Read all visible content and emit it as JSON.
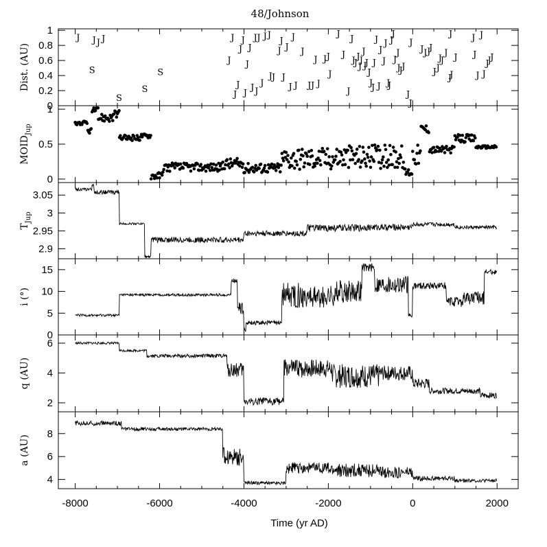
{
  "chart_data": {
    "type": "line",
    "title": "48/Johnson",
    "xlabel": "Time (yr AD)",
    "xlim": [
      -8400,
      2500
    ],
    "xticks": [
      -8000,
      -6000,
      -4000,
      -2000,
      0,
      2000
    ],
    "x_tick_labels": [
      "-8000",
      "-6000",
      "-4000",
      "-2000",
      "0",
      "2000"
    ],
    "panels": [
      {
        "id": "dist",
        "ylabel": "Dist. (AU)",
        "type": "scatter",
        "ylim": [
          0,
          1.02
        ],
        "yticks": [
          0,
          0.2,
          0.4,
          0.6,
          0.8,
          1
        ],
        "y_tick_labels": [
          "0",
          "0.2",
          "0.4",
          "0.6",
          "0.8",
          "1"
        ],
        "markers": [
          {
            "t": "J",
            "x": -7930,
            "y": 0.9
          },
          {
            "t": "J",
            "x": -7550,
            "y": 0.87
          },
          {
            "t": "J",
            "x": -7450,
            "y": 0.84
          },
          {
            "t": "J",
            "x": -7330,
            "y": 0.89
          },
          {
            "t": "S",
            "x": -7600,
            "y": 0.47
          },
          {
            "t": "S",
            "x": -6960,
            "y": 0.1
          },
          {
            "t": "S",
            "x": -6350,
            "y": 0.22
          },
          {
            "t": "S",
            "x": -5980,
            "y": 0.44
          },
          {
            "t": "J",
            "x": -4350,
            "y": 0.6
          },
          {
            "t": "J",
            "x": -4270,
            "y": 0.9
          },
          {
            "t": "J",
            "x": -4210,
            "y": 0.15
          },
          {
            "t": "J",
            "x": -4140,
            "y": 0.28
          },
          {
            "t": "J",
            "x": -4080,
            "y": 0.75
          },
          {
            "t": "J",
            "x": -4020,
            "y": 0.87
          },
          {
            "t": "J",
            "x": -3970,
            "y": 0.17
          },
          {
            "t": "J",
            "x": -3920,
            "y": 0.55
          },
          {
            "t": "J",
            "x": -3860,
            "y": 0.77
          },
          {
            "t": "J",
            "x": -3800,
            "y": 0.24
          },
          {
            "t": "J",
            "x": -3730,
            "y": 0.9
          },
          {
            "t": "J",
            "x": -3700,
            "y": 0.19
          },
          {
            "t": "J",
            "x": -3650,
            "y": 0.9
          },
          {
            "t": "J",
            "x": -3570,
            "y": 0.3
          },
          {
            "t": "J",
            "x": -3500,
            "y": 0.92
          },
          {
            "t": "J",
            "x": -3400,
            "y": 0.94
          },
          {
            "t": "J",
            "x": -3370,
            "y": 0.39
          },
          {
            "t": "J",
            "x": -3300,
            "y": 0.38
          },
          {
            "t": "J",
            "x": -3160,
            "y": 0.73
          },
          {
            "t": "J",
            "x": -3110,
            "y": 0.86
          },
          {
            "t": "J",
            "x": -3060,
            "y": 0.38
          },
          {
            "t": "J",
            "x": -2980,
            "y": 0.78
          },
          {
            "t": "J",
            "x": -2900,
            "y": 0.25
          },
          {
            "t": "J",
            "x": -2830,
            "y": 0.91
          },
          {
            "t": "J",
            "x": -2770,
            "y": 0.27
          },
          {
            "t": "J",
            "x": -2610,
            "y": 0.72
          },
          {
            "t": "J",
            "x": -2450,
            "y": 0.27
          },
          {
            "t": "J",
            "x": -2370,
            "y": 0.27
          },
          {
            "t": "J",
            "x": -2300,
            "y": 0.61
          },
          {
            "t": "J",
            "x": -2230,
            "y": 0.29
          },
          {
            "t": "J",
            "x": -2080,
            "y": 0.62
          },
          {
            "t": "J",
            "x": -2000,
            "y": 0.65
          },
          {
            "t": "J",
            "x": -1960,
            "y": 0.42
          },
          {
            "t": "J",
            "x": -1760,
            "y": 0.95
          },
          {
            "t": "J",
            "x": -1640,
            "y": 0.68
          },
          {
            "t": "J",
            "x": -1520,
            "y": 0.19
          },
          {
            "t": "J",
            "x": -1440,
            "y": 0.89
          },
          {
            "t": "J",
            "x": -1400,
            "y": 0.6
          },
          {
            "t": "J",
            "x": -1350,
            "y": 0.57
          },
          {
            "t": "J",
            "x": -1290,
            "y": 0.65
          },
          {
            "t": "J",
            "x": -1250,
            "y": 0.52
          },
          {
            "t": "J",
            "x": -1220,
            "y": 0.6
          },
          {
            "t": "J",
            "x": -1160,
            "y": 0.72
          },
          {
            "t": "J",
            "x": -1130,
            "y": 0.53
          },
          {
            "t": "J",
            "x": -1090,
            "y": 0.57
          },
          {
            "t": "J",
            "x": -1030,
            "y": 0.44
          },
          {
            "t": "J",
            "x": -990,
            "y": 0.3
          },
          {
            "t": "J",
            "x": -940,
            "y": 0.24
          },
          {
            "t": "J",
            "x": -910,
            "y": 0.57
          },
          {
            "t": "J",
            "x": -860,
            "y": 0.88
          },
          {
            "t": "J",
            "x": -800,
            "y": 0.26
          },
          {
            "t": "J",
            "x": -760,
            "y": 0.74
          },
          {
            "t": "J",
            "x": -680,
            "y": 0.59
          },
          {
            "t": "J",
            "x": -640,
            "y": 0.83
          },
          {
            "t": "J",
            "x": -580,
            "y": 0.3
          },
          {
            "t": "J",
            "x": -550,
            "y": 0.27
          },
          {
            "t": "J",
            "x": -500,
            "y": 0.87
          },
          {
            "t": "J",
            "x": -460,
            "y": 0.95
          },
          {
            "t": "J",
            "x": -420,
            "y": 0.61
          },
          {
            "t": "J",
            "x": -350,
            "y": 0.7
          },
          {
            "t": "J",
            "x": -330,
            "y": 0.5
          },
          {
            "t": "J",
            "x": -280,
            "y": 0.47
          },
          {
            "t": "J",
            "x": -220,
            "y": 0.52
          },
          {
            "t": "J",
            "x": -110,
            "y": 0.15
          },
          {
            "t": "J",
            "x": -50,
            "y": 0.03
          },
          {
            "t": "J",
            "x": -40,
            "y": 0.84
          },
          {
            "t": "J",
            "x": 220,
            "y": 0.75
          },
          {
            "t": "J",
            "x": 300,
            "y": 0.7
          },
          {
            "t": "J",
            "x": 380,
            "y": 0.72
          },
          {
            "t": "J",
            "x": 430,
            "y": 0.77
          },
          {
            "t": "J",
            "x": 520,
            "y": 0.45
          },
          {
            "t": "J",
            "x": 600,
            "y": 0.5
          },
          {
            "t": "J",
            "x": 650,
            "y": 0.63
          },
          {
            "t": "J",
            "x": 700,
            "y": 0.6
          },
          {
            "t": "J",
            "x": 790,
            "y": 0.7
          },
          {
            "t": "J",
            "x": 880,
            "y": 0.37
          },
          {
            "t": "J",
            "x": 900,
            "y": 0.95
          },
          {
            "t": "J",
            "x": 920,
            "y": 0.41
          },
          {
            "t": "J",
            "x": 1020,
            "y": 0.64
          },
          {
            "t": "J",
            "x": 1440,
            "y": 0.9
          },
          {
            "t": "J",
            "x": 1470,
            "y": 0.68
          },
          {
            "t": "J",
            "x": 1540,
            "y": 0.4
          },
          {
            "t": "J",
            "x": 1630,
            "y": 0.94
          },
          {
            "t": "J",
            "x": 1690,
            "y": 0.42
          },
          {
            "t": "J",
            "x": 1770,
            "y": 0.56
          },
          {
            "t": "J",
            "x": 1820,
            "y": 0.6
          },
          {
            "t": "J",
            "x": 1880,
            "y": 0.64
          }
        ]
      },
      {
        "id": "moid",
        "ylabel": "MOID",
        "ylabel_sub": "Jup",
        "type": "scatter",
        "ylim": [
          -0.05,
          1.05
        ],
        "yticks": [
          0,
          0.5,
          1
        ],
        "y_tick_labels": [
          "0",
          "0.5",
          "1"
        ],
        "segments": [
          {
            "x0": -8000,
            "x1": -7700,
            "y": 0.8,
            "amp": 0.03
          },
          {
            "x0": -7700,
            "x1": -7600,
            "y": 0.69,
            "amp": 0.04
          },
          {
            "x0": -7600,
            "x1": -7450,
            "y": 0.98,
            "amp": 0.04
          },
          {
            "x0": -7450,
            "x1": -7100,
            "y": 0.88,
            "amp": 0.06
          },
          {
            "x0": -7100,
            "x1": -6950,
            "y": 0.92,
            "amp": 0.06
          },
          {
            "x0": -6950,
            "x1": -6450,
            "y": 0.59,
            "amp": 0.04
          },
          {
            "x0": -6450,
            "x1": -6200,
            "y": 0.62,
            "amp": 0.03
          },
          {
            "x0": -6200,
            "x1": -5900,
            "y": 0.05,
            "amp": 0.05
          },
          {
            "x0": -5900,
            "x1": -4500,
            "y": 0.17,
            "amp": 0.06
          },
          {
            "x0": -4500,
            "x1": -4000,
            "y": 0.22,
            "amp": 0.08
          },
          {
            "x0": -4000,
            "x1": -3100,
            "y": 0.16,
            "amp": 0.07
          },
          {
            "x0": -3100,
            "x1": -1800,
            "y": 0.3,
            "amp": 0.16
          },
          {
            "x0": -1800,
            "x1": -200,
            "y": 0.32,
            "amp": 0.17
          },
          {
            "x0": -200,
            "x1": 0,
            "y": 0.1,
            "amp": 0.06
          },
          {
            "x0": 0,
            "x1": 200,
            "y": 0.35,
            "amp": 0.15
          },
          {
            "x0": 200,
            "x1": 400,
            "y": 0.72,
            "amp": 0.06
          },
          {
            "x0": 400,
            "x1": 1000,
            "y": 0.42,
            "amp": 0.05
          },
          {
            "x0": 1000,
            "x1": 1500,
            "y": 0.58,
            "amp": 0.06
          },
          {
            "x0": 1500,
            "x1": 2000,
            "y": 0.46,
            "amp": 0.02
          }
        ]
      },
      {
        "id": "tjup",
        "ylabel": "T",
        "ylabel_sub": "Jup",
        "type": "line",
        "ylim": [
          2.872,
          3.085
        ],
        "yticks": [
          2.9,
          2.95,
          3,
          3.05
        ],
        "y_tick_labels": [
          "2.9",
          "2.95",
          "3",
          "3.05"
        ],
        "segments": [
          {
            "x0": -8000,
            "x1": -7600,
            "y": 3.066,
            "amp": 0.004
          },
          {
            "x0": -7600,
            "x1": -7550,
            "y": 3.078,
            "amp": 0.003
          },
          {
            "x0": -7550,
            "x1": -6950,
            "y": 3.058,
            "amp": 0.006
          },
          {
            "x0": -6950,
            "x1": -6350,
            "y": 2.97,
            "amp": 0.003
          },
          {
            "x0": -6350,
            "x1": -6200,
            "y": 2.878,
            "amp": 0.003
          },
          {
            "x0": -6200,
            "x1": -4000,
            "y": 2.925,
            "amp": 0.008
          },
          {
            "x0": -4000,
            "x1": -2500,
            "y": 2.943,
            "amp": 0.008
          },
          {
            "x0": -2500,
            "x1": -1200,
            "y": 2.958,
            "amp": 0.01
          },
          {
            "x0": -1200,
            "x1": 0,
            "y": 2.96,
            "amp": 0.009
          },
          {
            "x0": 0,
            "x1": 1000,
            "y": 2.968,
            "amp": 0.006
          },
          {
            "x0": 1000,
            "x1": 2000,
            "y": 2.96,
            "amp": 0.005
          }
        ]
      },
      {
        "id": "incl",
        "ylabel": "i (°)",
        "type": "line",
        "ylim": [
          0,
          17.5
        ],
        "yticks": [
          0,
          5,
          10,
          15
        ],
        "y_tick_labels": [
          "0",
          "5",
          "10",
          "15"
        ],
        "segments": [
          {
            "x0": -8000,
            "x1": -6950,
            "y": 4.5,
            "amp": 0.3
          },
          {
            "x0": -6950,
            "x1": -4300,
            "y": 9.2,
            "amp": 0.3
          },
          {
            "x0": -4300,
            "x1": -4150,
            "y": 12.5,
            "amp": 0.5
          },
          {
            "x0": -4150,
            "x1": -4000,
            "y": 6,
            "amp": 1.5
          },
          {
            "x0": -4000,
            "x1": -3950,
            "y": 1,
            "amp": 0.5
          },
          {
            "x0": -3950,
            "x1": -3100,
            "y": 2.8,
            "amp": 0.5
          },
          {
            "x0": -3100,
            "x1": -2600,
            "y": 9,
            "amp": 3
          },
          {
            "x0": -2600,
            "x1": -1800,
            "y": 8.8,
            "amp": 2.5
          },
          {
            "x0": -1800,
            "x1": -1200,
            "y": 10,
            "amp": 2.5
          },
          {
            "x0": -1200,
            "x1": -900,
            "y": 15.5,
            "amp": 1
          },
          {
            "x0": -900,
            "x1": -100,
            "y": 11.5,
            "amp": 2
          },
          {
            "x0": -100,
            "x1": 0,
            "y": 4.5,
            "amp": 0.5
          },
          {
            "x0": 0,
            "x1": 800,
            "y": 11.3,
            "amp": 0.8
          },
          {
            "x0": 800,
            "x1": 1200,
            "y": 7.5,
            "amp": 1.2
          },
          {
            "x0": 1200,
            "x1": 1700,
            "y": 8.5,
            "amp": 1.5
          },
          {
            "x0": 1700,
            "x1": 2000,
            "y": 14.5,
            "amp": 0.6
          }
        ]
      },
      {
        "id": "q",
        "ylabel": "q (AU)",
        "type": "line",
        "ylim": [
          1.4,
          6.55
        ],
        "yticks": [
          2,
          4,
          6
        ],
        "y_tick_labels": [
          "2",
          "4",
          "6"
        ],
        "segments": [
          {
            "x0": -8000,
            "x1": -6950,
            "y": 6.0,
            "amp": 0.08
          },
          {
            "x0": -6950,
            "x1": -6300,
            "y": 5.5,
            "amp": 0.08
          },
          {
            "x0": -6300,
            "x1": -4400,
            "y": 5.15,
            "amp": 0.12
          },
          {
            "x0": -4400,
            "x1": -4000,
            "y": 4.2,
            "amp": 0.5
          },
          {
            "x0": -4000,
            "x1": -3050,
            "y": 2.1,
            "amp": 0.25
          },
          {
            "x0": -3050,
            "x1": -1900,
            "y": 4.3,
            "amp": 0.6
          },
          {
            "x0": -1900,
            "x1": -800,
            "y": 3.8,
            "amp": 0.8
          },
          {
            "x0": -800,
            "x1": 0,
            "y": 4.0,
            "amp": 0.5
          },
          {
            "x0": 0,
            "x1": 400,
            "y": 3.3,
            "amp": 0.35
          },
          {
            "x0": 400,
            "x1": 1600,
            "y": 2.8,
            "amp": 0.2
          },
          {
            "x0": 1600,
            "x1": 2000,
            "y": 2.5,
            "amp": 0.2
          }
        ]
      },
      {
        "id": "a",
        "ylabel": "a (AU)",
        "type": "line",
        "ylim": [
          3.2,
          9.9
        ],
        "yticks": [
          4,
          6,
          8
        ],
        "y_tick_labels": [
          "4",
          "6",
          "8"
        ],
        "segments": [
          {
            "x0": -8000,
            "x1": -6900,
            "y": 8.9,
            "amp": 0.2
          },
          {
            "x0": -6900,
            "x1": -4500,
            "y": 8.4,
            "amp": 0.15
          },
          {
            "x0": -4500,
            "x1": -4000,
            "y": 6.0,
            "amp": 0.8
          },
          {
            "x0": -4000,
            "x1": -3000,
            "y": 3.7,
            "amp": 0.15
          },
          {
            "x0": -3000,
            "x1": -2000,
            "y": 5.0,
            "amp": 0.5
          },
          {
            "x0": -2000,
            "x1": -800,
            "y": 4.8,
            "amp": 0.6
          },
          {
            "x0": -800,
            "x1": 0,
            "y": 4.6,
            "amp": 0.5
          },
          {
            "x0": 0,
            "x1": 1000,
            "y": 4.1,
            "amp": 0.2
          },
          {
            "x0": 1000,
            "x1": 2000,
            "y": 3.9,
            "amp": 0.15
          }
        ]
      }
    ]
  }
}
